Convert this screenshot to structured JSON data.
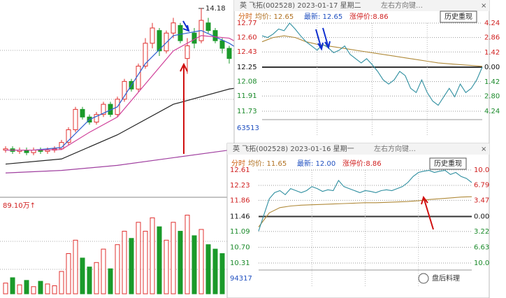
{
  "left_chart": {
    "type": "candlestick",
    "high_label": "14.18",
    "ylim": [
      6.8,
      14.5
    ],
    "up_color": "#e0302f",
    "down_color": "#1a9a2a",
    "candles": {
      "open": [
        8.6,
        8.65,
        8.55,
        8.6,
        8.5,
        8.6,
        8.55,
        8.6,
        8.65,
        8.9,
        9.4,
        10.2,
        9.9,
        9.7,
        10.0,
        10.4,
        10.0,
        10.6,
        11.3,
        11.0,
        11.9,
        12.8,
        13.3,
        12.5,
        13.2,
        13.5,
        12.2,
        13.2,
        12.9,
        13.6,
        13.3,
        12.9,
        12.6,
        12.2,
        12.4,
        12.1,
        12.0
      ],
      "close": [
        8.65,
        8.55,
        8.6,
        8.5,
        8.6,
        8.55,
        8.6,
        8.65,
        8.9,
        9.4,
        10.2,
        9.9,
        9.7,
        10.0,
        10.4,
        10.0,
        10.6,
        11.3,
        11.0,
        11.9,
        12.8,
        13.4,
        12.5,
        13.2,
        13.6,
        12.9,
        12.7,
        12.8,
        13.7,
        13.3,
        12.9,
        12.6,
        12.2,
        12.4,
        12.0,
        12.0,
        11.7
      ],
      "high": [
        8.75,
        8.75,
        8.7,
        8.7,
        8.7,
        8.7,
        8.7,
        8.75,
        9.0,
        9.5,
        10.3,
        10.3,
        10.0,
        10.1,
        10.5,
        10.5,
        10.7,
        11.4,
        11.4,
        12.0,
        13.0,
        13.6,
        13.4,
        13.3,
        13.8,
        13.6,
        13.0,
        13.4,
        14.18,
        13.8,
        13.4,
        13.0,
        12.7,
        12.5,
        12.5,
        12.2,
        12.1
      ],
      "low": [
        8.5,
        8.45,
        8.45,
        8.4,
        8.4,
        8.45,
        8.45,
        8.5,
        8.6,
        8.8,
        9.3,
        9.8,
        9.6,
        9.6,
        9.9,
        9.9,
        9.9,
        10.5,
        10.9,
        10.9,
        11.8,
        12.6,
        12.3,
        12.4,
        13.0,
        12.8,
        11.6,
        12.6,
        12.8,
        13.2,
        12.8,
        12.4,
        12.0,
        12.1,
        11.9,
        11.8,
        11.6
      ]
    },
    "ma": [
      {
        "color": "#2f5fd0",
        "x": [
          0,
          4,
          8,
          12,
          16,
          20,
          24,
          28,
          32,
          36
        ],
        "values": [
          8.6,
          8.6,
          8.7,
          9.8,
          10.3,
          12.0,
          13.1,
          13.3,
          12.8,
          12.1
        ]
      },
      {
        "color": "#d0409a",
        "x": [
          0,
          4,
          8,
          12,
          16,
          20,
          24,
          28,
          32,
          36
        ],
        "values": [
          8.6,
          8.6,
          8.62,
          9.3,
          9.9,
          11.2,
          12.5,
          13.1,
          13.0,
          12.4
        ]
      },
      {
        "color": "#222222",
        "x": [
          0,
          8,
          16,
          24,
          32,
          36
        ],
        "values": [
          8.05,
          8.25,
          9.2,
          10.4,
          11.0,
          11.15
        ]
      },
      {
        "color": "#a040a0",
        "x": [
          0,
          8,
          16,
          24,
          32,
          36
        ],
        "values": [
          7.7,
          7.8,
          8.0,
          8.3,
          8.6,
          8.7
        ]
      }
    ],
    "volume_label": "89.10万↑",
    "volume_ylim": [
      0,
      90
    ],
    "volumes": [
      12,
      18,
      10,
      15,
      8,
      14,
      11,
      9,
      25,
      45,
      60,
      40,
      30,
      35,
      50,
      28,
      55,
      70,
      62,
      80,
      70,
      85,
      75,
      60,
      80,
      70,
      88,
      65,
      72,
      55,
      50,
      45,
      48,
      35,
      40,
      30,
      38
    ]
  },
  "panels": [
    {
      "title": "英 飞拓(002528) 2023-01-17 星期二",
      "hint": "左右方向键…",
      "mode": "分时",
      "avg": "均价: 12.65",
      "latest": "最新: 12.65",
      "limit": "涨停价:8.86",
      "button": "历史重现",
      "ylim": [
        11.73,
        12.77
      ],
      "yticks": [
        12.77,
        {
          "value": 12.6,
          "label": "12.60"
        },
        12.43,
        12.25,
        12.08,
        11.91,
        11.73
      ],
      "y2lim": [
        -4.24,
        4.24
      ],
      "y2ticks": [
        4.24,
        2.86,
        1.42,
        {
          "value": 0,
          "label": "0.00"
        },
        {
          "value": -1.42,
          "label": "1.42"
        },
        {
          "value": -2.8,
          "label": "2.80"
        },
        {
          "value": -4.24,
          "label": "4.24"
        }
      ],
      "volume_label": "63513",
      "price": {
        "color": "#2f8fa0",
        "values": [
          12.62,
          12.6,
          12.64,
          12.7,
          12.68,
          12.77,
          12.7,
          12.62,
          12.55,
          12.5,
          12.45,
          12.52,
          12.48,
          12.42,
          12.45,
          12.5,
          12.4,
          12.35,
          12.3,
          12.35,
          12.28,
          12.2,
          12.1,
          12.05,
          12.1,
          12.2,
          12.15,
          12.0,
          11.95,
          12.1,
          11.95,
          11.85,
          11.8,
          11.9,
          12.0,
          11.9,
          12.05,
          11.95,
          12.0,
          12.1,
          12.25
        ]
      },
      "average": {
        "color": "#b08a3a",
        "values": [
          12.55,
          12.6,
          12.62,
          12.6,
          12.55,
          12.52,
          12.5,
          12.48,
          12.46,
          12.44,
          12.42,
          12.4,
          12.38,
          12.36,
          12.34,
          12.32,
          12.3,
          12.29,
          12.28,
          12.27,
          12.26
        ]
      }
    },
    {
      "title": "英 飞拓(002528) 2023-01-16 星期一",
      "hint": "左右方向键…",
      "mode": "分时",
      "avg": "均价: 11.65",
      "latest": "最新: 12.00",
      "limit": "涨停价:8.86",
      "button": "历史重现",
      "ylim": [
        10.31,
        12.61
      ],
      "yticks": [
        12.61,
        12.23,
        11.86,
        11.46,
        11.09,
        {
          "value": 10.7,
          "label": "10.70"
        },
        10.31
      ],
      "y2lim": [
        -10,
        10
      ],
      "y2ticks": [
        {
          "value": 10,
          "label": "10.0"
        },
        6.79,
        3.47,
        {
          "value": 0,
          "label": "0.00"
        },
        {
          "value": -3.22,
          "label": "3.22"
        },
        {
          "value": -6.63,
          "label": "6.63"
        },
        {
          "value": -10,
          "label": "10.0"
        }
      ],
      "volume_label": "94317",
      "price": {
        "color": "#2f8fa0",
        "values": [
          11.1,
          11.5,
          11.9,
          12.05,
          12.1,
          12.0,
          12.15,
          12.1,
          12.05,
          12.1,
          12.2,
          12.15,
          12.08,
          12.12,
          12.1,
          12.35,
          12.2,
          12.15,
          12.1,
          12.05,
          12.1,
          12.08,
          12.05,
          12.1,
          12.12,
          12.1,
          12.15,
          12.2,
          12.3,
          12.45,
          12.55,
          12.58,
          12.6,
          12.55,
          12.58,
          12.6,
          12.5,
          12.55,
          12.45,
          12.4,
          12.3
        ]
      },
      "average": {
        "color": "#b08a3a",
        "values": [
          11.2,
          11.55,
          11.68,
          11.72,
          11.74,
          11.75,
          11.76,
          11.77,
          11.78,
          11.79,
          11.8,
          11.8,
          11.81,
          11.82,
          11.83,
          11.85,
          11.88,
          11.9,
          11.92,
          11.94,
          11.95
        ]
      }
    }
  ],
  "watermark": "盘后料理"
}
